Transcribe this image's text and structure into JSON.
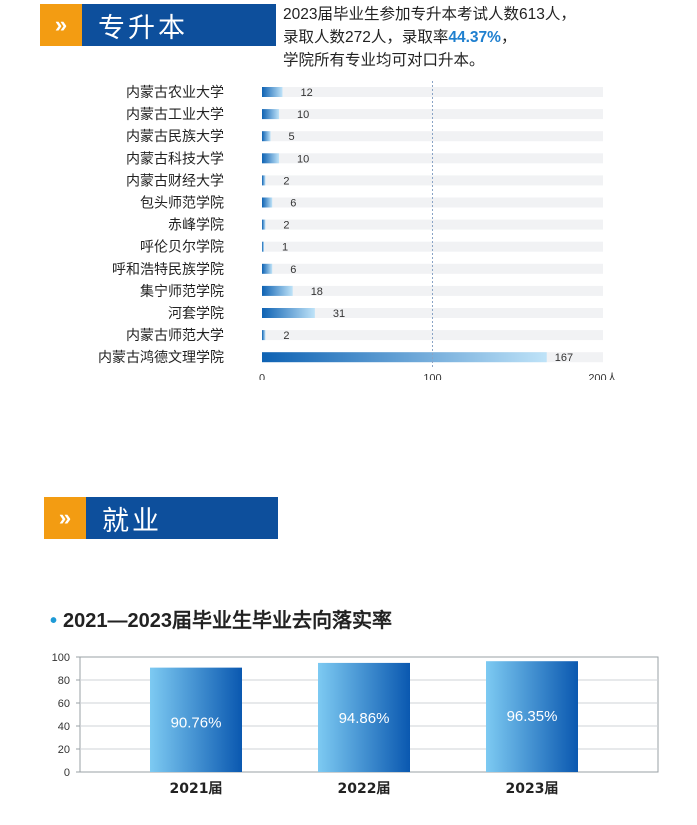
{
  "section1": {
    "arrow": "»",
    "title": "专升本",
    "intro": {
      "line1": "2023届毕业生参加专升本考试人数613人，",
      "line2_pre": "录取人数272人，录取率",
      "line2_rate": "44.37%",
      "line2_post": "，",
      "line3": "学院所有专业均可对口升本。"
    }
  },
  "section2": {
    "arrow": "»",
    "title": "就业",
    "chart_title": "2021—2023届毕业生毕业去向落实率"
  },
  "colors": {
    "orange": "#f39c12",
    "header_blue": "#0d4f9c",
    "accent": "#1e7fcf"
  },
  "chart_data": [
    {
      "type": "bar",
      "orientation": "horizontal",
      "categories": [
        "内蒙古农业大学",
        "内蒙古工业大学",
        "内蒙古民族大学",
        "内蒙古科技大学",
        "内蒙古财经大学",
        "包头师范学院",
        "赤峰学院",
        "呼伦贝尔学院",
        "呼和浩特民族学院",
        "集宁师范学院",
        "河套学院",
        "内蒙古师范大学",
        "内蒙古鸿德文理学院"
      ],
      "values": [
        12,
        10,
        5,
        10,
        2,
        6,
        2,
        1,
        6,
        18,
        31,
        2,
        167
      ],
      "xlim": [
        0,
        200
      ],
      "xticks": [
        "0",
        "100",
        "200人"
      ],
      "title": "",
      "xlabel": "",
      "ylabel": ""
    },
    {
      "type": "bar",
      "title": "2021—2023届毕业生毕业去向落实率",
      "categories": [
        "2021届",
        "2022届",
        "2023届"
      ],
      "values": [
        90.76,
        94.86,
        96.35
      ],
      "value_labels": [
        "90.76%",
        "94.86%",
        "96.35%"
      ],
      "ylim": [
        0,
        100
      ],
      "yticks": [
        "0",
        "20",
        "40",
        "60",
        "80",
        "100"
      ],
      "grid": true,
      "xlabel": "",
      "ylabel": ""
    }
  ]
}
